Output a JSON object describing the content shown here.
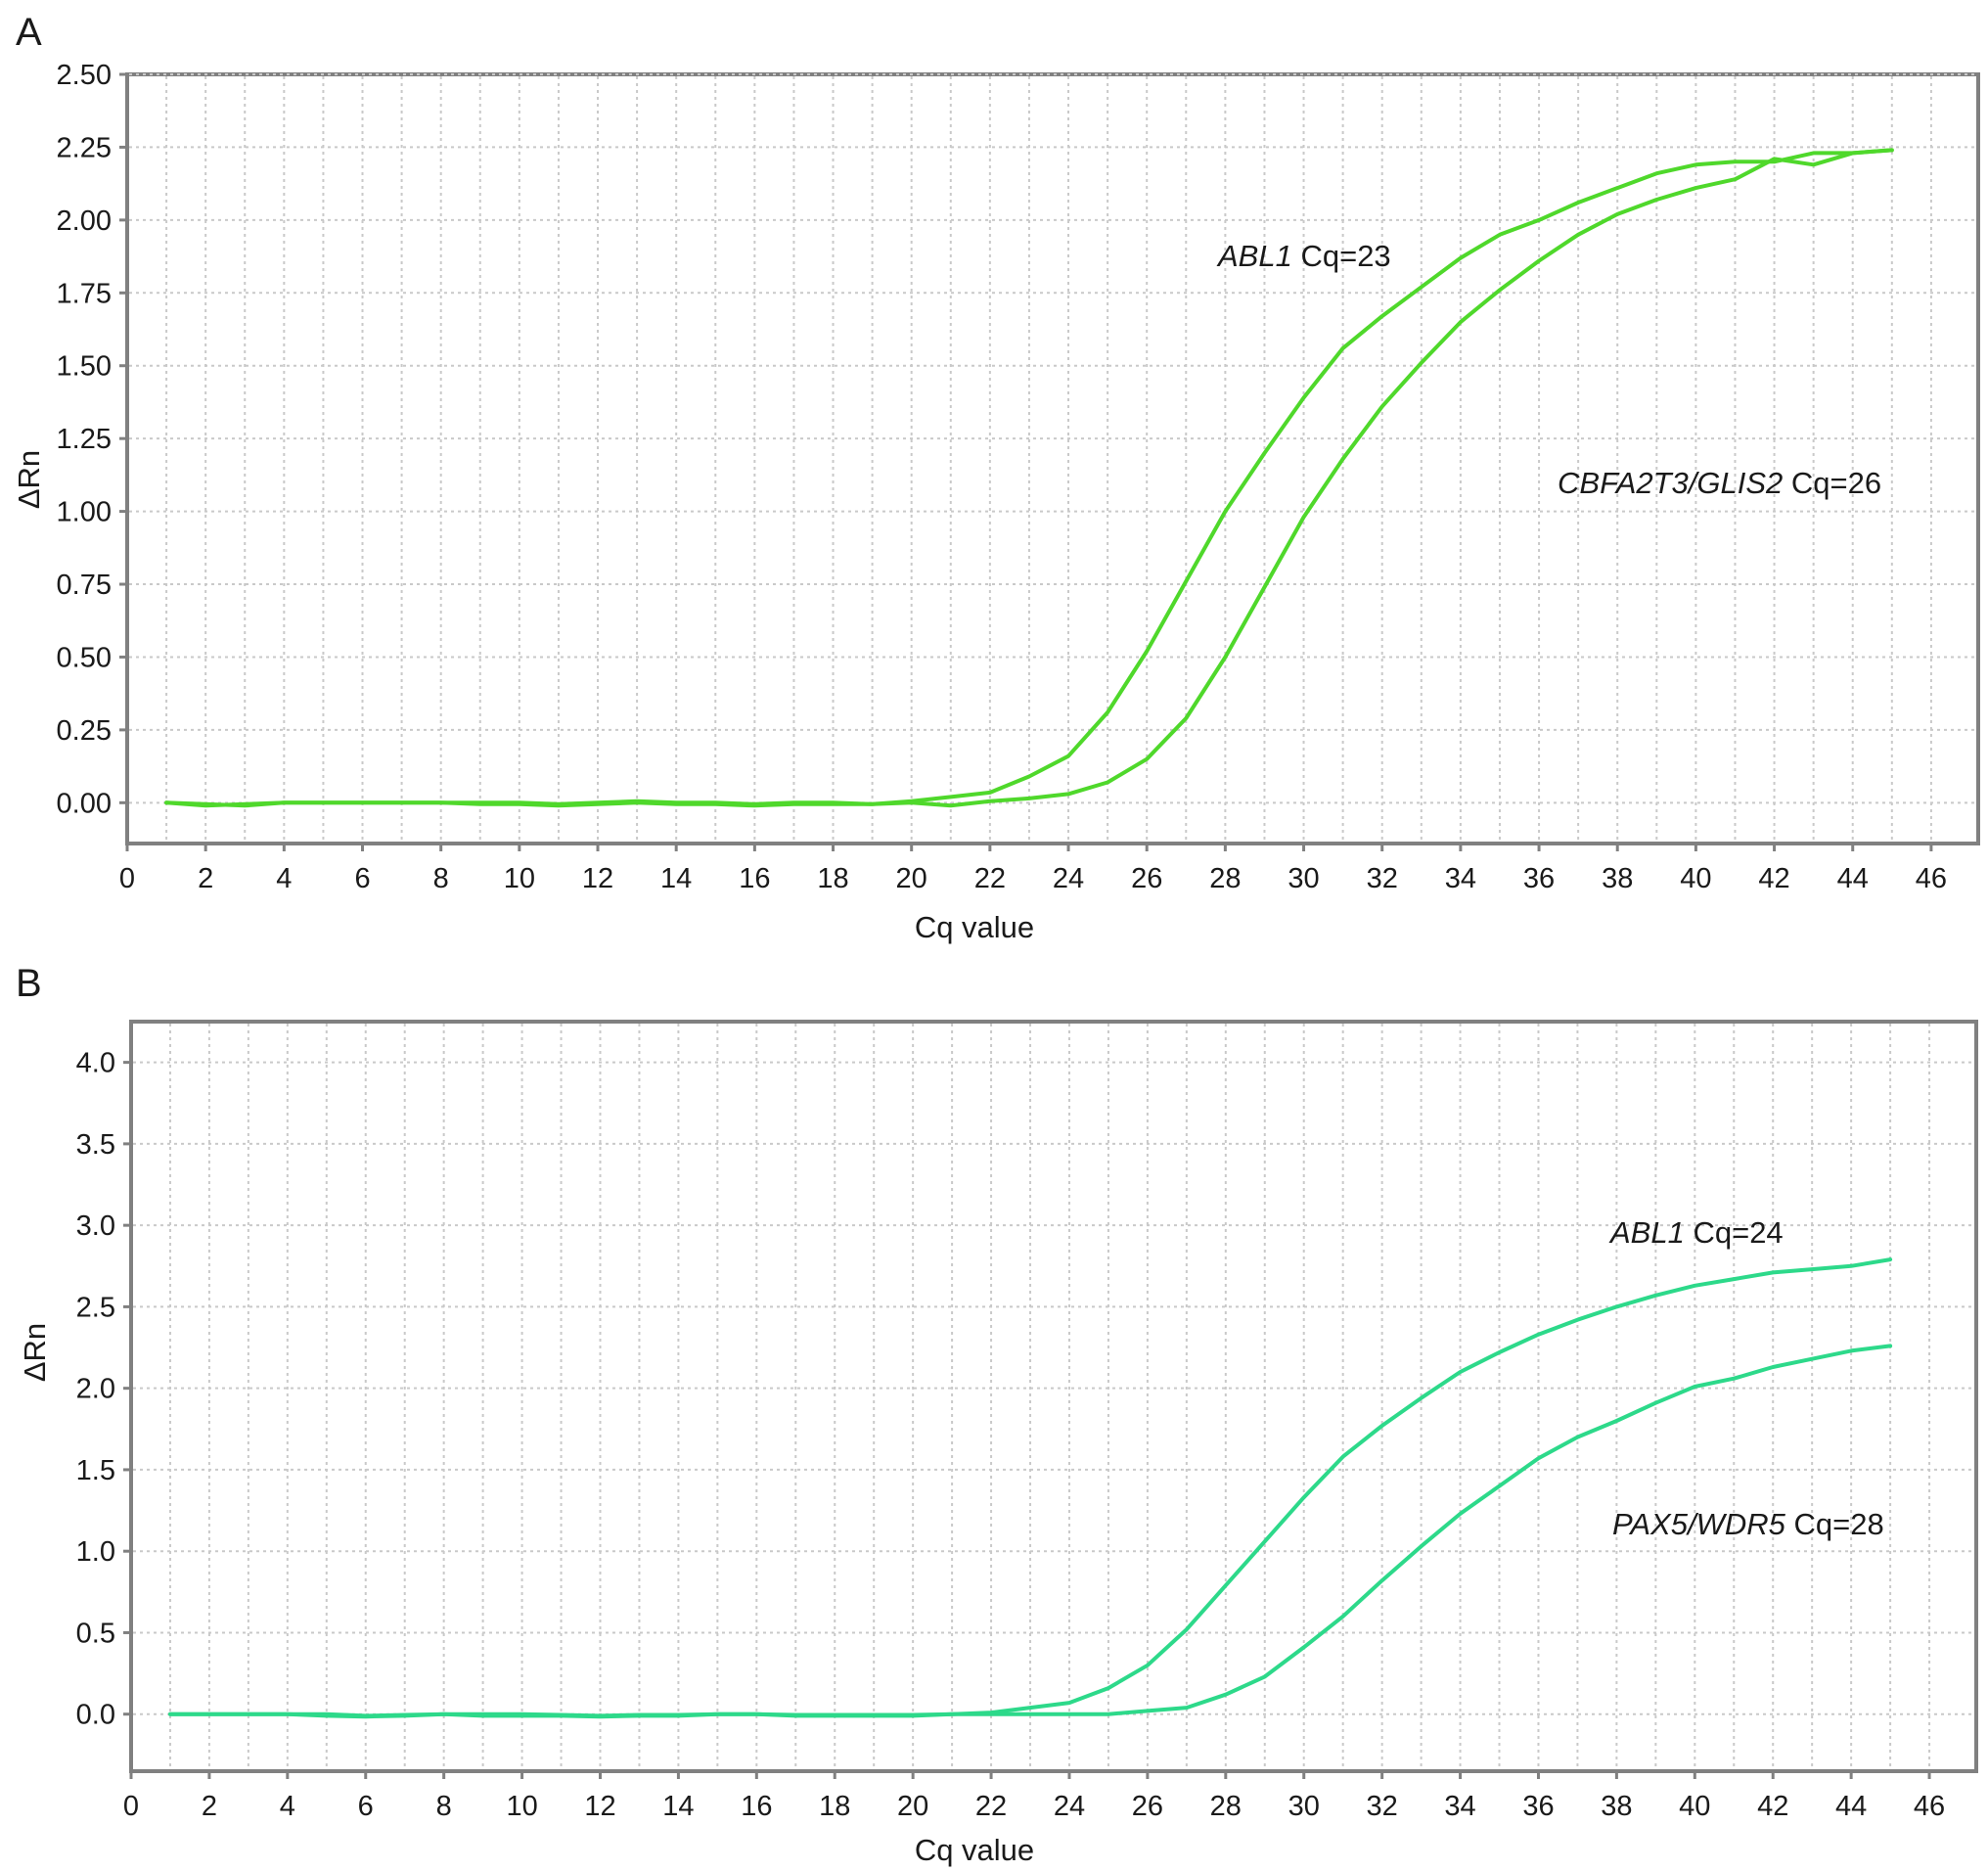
{
  "chart_data": [
    {
      "panel_label": "A",
      "type": "line",
      "xlabel": "Cq value",
      "ylabel": "ΔRn",
      "xlim": [
        0,
        47.2
      ],
      "ylim": [
        -0.14,
        2.5
      ],
      "xticks": [
        0,
        2,
        4,
        6,
        8,
        10,
        12,
        14,
        16,
        18,
        20,
        22,
        24,
        26,
        28,
        30,
        32,
        34,
        36,
        38,
        40,
        42,
        44,
        46
      ],
      "yticks": [
        "0.00",
        "0.25",
        "0.50",
        "0.75",
        "1.00",
        "1.25",
        "1.50",
        "1.75",
        "2.00",
        "2.25",
        "2.50"
      ],
      "grid": true,
      "line_color": "#4fd82b",
      "series": [
        {
          "x": [
            1,
            2,
            3,
            4,
            5,
            6,
            7,
            8,
            9,
            10,
            11,
            12,
            13,
            14,
            15,
            16,
            17,
            18,
            19,
            20,
            21,
            22,
            23,
            24,
            25,
            26,
            27,
            28,
            29,
            30,
            31,
            32,
            33,
            34,
            35,
            36,
            37,
            38,
            39,
            40,
            41,
            42,
            43,
            44,
            45
          ],
          "values": [
            0,
            -0.01,
            -0.005,
            0,
            0,
            0,
            0,
            0,
            -0.005,
            -0.005,
            -0.01,
            -0.005,
            0,
            -0.005,
            -0.005,
            -0.01,
            -0.005,
            -0.005,
            -0.005,
            0.005,
            0.02,
            0.035,
            0.09,
            0.16,
            0.31,
            0.52,
            0.76,
            1.0,
            1.2,
            1.39,
            1.56,
            1.67,
            1.77,
            1.87,
            1.95,
            2.0,
            2.06,
            2.11,
            2.16,
            2.19,
            2.2,
            2.2,
            2.23,
            2.23,
            2.24
          ]
        },
        {
          "x": [
            1,
            2,
            3,
            4,
            5,
            6,
            7,
            8,
            9,
            10,
            11,
            12,
            13,
            14,
            15,
            16,
            17,
            18,
            19,
            20,
            21,
            22,
            23,
            24,
            25,
            26,
            27,
            28,
            29,
            30,
            31,
            32,
            33,
            34,
            35,
            36,
            37,
            38,
            39,
            40,
            41,
            42,
            43,
            44,
            45
          ],
          "values": [
            0,
            -0.005,
            -0.01,
            0,
            0,
            0,
            0,
            0,
            0,
            0,
            -0.005,
            0,
            0.005,
            0,
            0,
            -0.005,
            0,
            0,
            -0.005,
            0,
            -0.01,
            0.005,
            0.015,
            0.03,
            0.07,
            0.15,
            0.29,
            0.5,
            0.74,
            0.98,
            1.18,
            1.36,
            1.51,
            1.65,
            1.76,
            1.86,
            1.95,
            2.02,
            2.07,
            2.11,
            2.14,
            2.21,
            2.19,
            2.23,
            2.24
          ]
        }
      ],
      "annotations": [
        {
          "gene": "ABL1",
          "text": " Cq=23"
        },
        {
          "gene": "CBFA2T3/GLIS2",
          "text": " Cq=26"
        }
      ]
    },
    {
      "panel_label": "B",
      "type": "line",
      "xlabel": "Cq value",
      "ylabel": "ΔRn",
      "xlim": [
        0,
        47.2
      ],
      "ylim": [
        -0.35,
        4.25
      ],
      "xticks": [
        0,
        2,
        4,
        6,
        8,
        10,
        12,
        14,
        16,
        18,
        20,
        22,
        24,
        26,
        28,
        30,
        32,
        34,
        36,
        38,
        40,
        42,
        44,
        46
      ],
      "yticks": [
        "0.0",
        "0.5",
        "1.0",
        "1.5",
        "2.0",
        "2.5",
        "3.0",
        "3.5",
        "4.0"
      ],
      "grid": true,
      "line_color": "#2dd98a",
      "series": [
        {
          "x": [
            1,
            2,
            3,
            4,
            5,
            6,
            7,
            8,
            9,
            10,
            11,
            12,
            13,
            14,
            15,
            16,
            17,
            18,
            19,
            20,
            21,
            22,
            23,
            24,
            25,
            26,
            27,
            28,
            29,
            30,
            31,
            32,
            33,
            34,
            35,
            36,
            37,
            38,
            39,
            40,
            41,
            42,
            43,
            44,
            45
          ],
          "values": [
            0,
            0,
            0,
            0,
            -0.01,
            -0.015,
            -0.01,
            0,
            -0.01,
            -0.01,
            -0.01,
            -0.015,
            -0.01,
            -0.01,
            0,
            0,
            -0.01,
            -0.01,
            -0.01,
            -0.01,
            0,
            0.01,
            0.04,
            0.07,
            0.16,
            0.3,
            0.52,
            0.79,
            1.06,
            1.33,
            1.58,
            1.77,
            1.94,
            2.1,
            2.22,
            2.33,
            2.42,
            2.5,
            2.57,
            2.63,
            2.67,
            2.71,
            2.73,
            2.75,
            2.79
          ]
        },
        {
          "x": [
            1,
            2,
            3,
            4,
            5,
            6,
            7,
            8,
            9,
            10,
            11,
            12,
            13,
            14,
            15,
            16,
            17,
            18,
            19,
            20,
            21,
            22,
            23,
            24,
            25,
            26,
            27,
            28,
            29,
            30,
            31,
            32,
            33,
            34,
            35,
            36,
            37,
            38,
            39,
            40,
            41,
            42,
            43,
            44,
            45
          ],
          "values": [
            0,
            0,
            0,
            0,
            0,
            -0.01,
            -0.005,
            0,
            0,
            0,
            -0.005,
            -0.01,
            -0.005,
            -0.005,
            0,
            0,
            -0.005,
            -0.005,
            -0.005,
            -0.005,
            0,
            0,
            0,
            0,
            0,
            0.02,
            0.04,
            0.12,
            0.23,
            0.41,
            0.6,
            0.82,
            1.03,
            1.23,
            1.4,
            1.57,
            1.7,
            1.8,
            1.91,
            2.01,
            2.06,
            2.13,
            2.18,
            2.23,
            2.26
          ]
        }
      ],
      "annotations": [
        {
          "gene": "ABL1",
          "text": " Cq=24"
        },
        {
          "gene": "PAX5/WDR5",
          "text": " Cq=28"
        }
      ]
    }
  ]
}
